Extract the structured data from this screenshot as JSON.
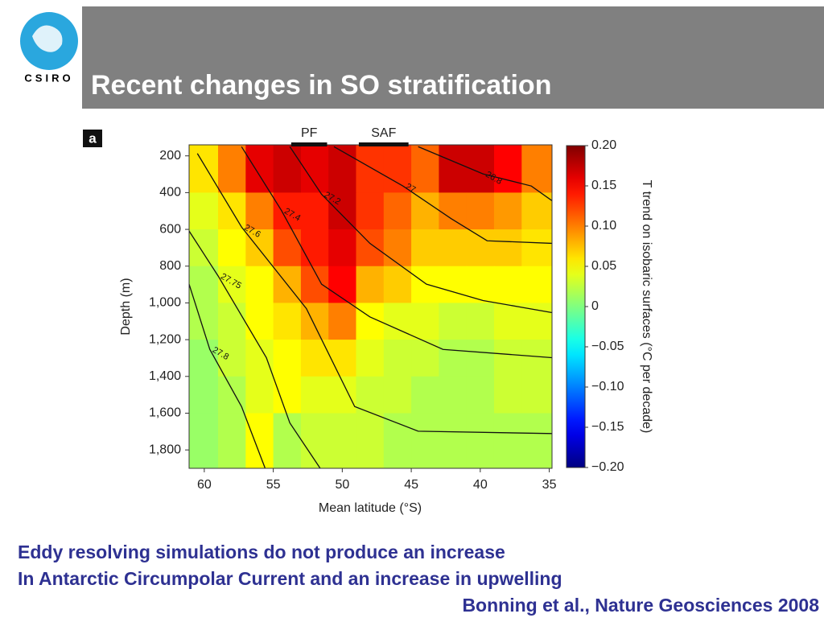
{
  "header": {
    "title": "Recent changes in SO stratification",
    "logo_text": "CSIRO"
  },
  "chart_data": {
    "type": "heatmap",
    "panel_label": "a",
    "xlabel": "Mean latitude (°S)",
    "ylabel": "Depth (m)",
    "colorbar_label": "T trend on isobaric surfaces (°C per decade)",
    "xlim": [
      61.1,
      34.8
    ],
    "xticks": [
      60,
      55,
      50,
      45,
      40,
      35
    ],
    "ylim": [
      140,
      1900
    ],
    "yticks": [
      200,
      400,
      600,
      800,
      {
        "value": 1000,
        "label": "1,000"
      },
      {
        "value": 1200,
        "label": "1,200"
      },
      {
        "value": 1400,
        "label": "1,400"
      },
      {
        "value": 1600,
        "label": "1,600"
      },
      {
        "value": 1800,
        "label": "1,800"
      }
    ],
    "clim": [
      -0.2,
      0.2
    ],
    "cticks": [
      {
        "value": 0.2,
        "label": "0.20"
      },
      0.15,
      {
        "value": 0.1,
        "label": "0.10"
      },
      0.05,
      0,
      {
        "value": -0.05,
        "label": "−0.05"
      },
      {
        "value": -0.1,
        "label": "−0.10"
      },
      {
        "value": -0.15,
        "label": "−0.15"
      },
      {
        "value": -0.2,
        "label": "−0.20"
      }
    ],
    "fronts": [
      {
        "label": "PF",
        "lat": [
          53.7,
          51.1
        ]
      },
      {
        "label": "SAF",
        "lat": [
          48.8,
          45.2
        ]
      }
    ],
    "x_edges": [
      61.1,
      59,
      57,
      55,
      53,
      51,
      49,
      47,
      45,
      43,
      41,
      39,
      37,
      34.8
    ],
    "y_edges": [
      140,
      400,
      600,
      800,
      1000,
      1200,
      1400,
      1600,
      1900
    ],
    "values": [
      [
        0.06,
        0.1,
        0.16,
        0.17,
        0.16,
        0.17,
        0.13,
        0.13,
        0.11,
        0.17,
        0.17,
        0.15,
        0.1
      ],
      [
        0.04,
        0.06,
        0.1,
        0.14,
        0.14,
        0.17,
        0.13,
        0.11,
        0.08,
        0.1,
        0.1,
        0.09,
        0.07
      ],
      [
        0.03,
        0.05,
        0.07,
        0.12,
        0.14,
        0.16,
        0.12,
        0.1,
        0.07,
        0.07,
        0.07,
        0.07,
        0.06
      ],
      [
        0.02,
        0.04,
        0.05,
        0.08,
        0.12,
        0.15,
        0.08,
        0.07,
        0.05,
        0.05,
        0.05,
        0.05,
        0.05
      ],
      [
        0.02,
        0.03,
        0.05,
        0.06,
        0.08,
        0.1,
        0.05,
        0.04,
        0.04,
        0.03,
        0.03,
        0.04,
        0.04
      ],
      [
        0.01,
        0.03,
        0.04,
        0.05,
        0.06,
        0.06,
        0.04,
        0.03,
        0.03,
        0.02,
        0.02,
        0.03,
        0.03
      ],
      [
        0.01,
        0.02,
        0.04,
        0.05,
        0.04,
        0.04,
        0.03,
        0.03,
        0.02,
        0.02,
        0.02,
        0.03,
        0.03
      ],
      [
        0.01,
        0.02,
        0.05,
        0.02,
        0.03,
        0.03,
        0.03,
        0.02,
        0.02,
        0.02,
        0.02,
        0.02,
        0.02
      ]
    ],
    "contours": [
      {
        "label": "26.8",
        "x": [
          44.5,
          39.8,
          36.3,
          34.8
        ],
        "y": [
          150,
          298,
          364,
          444
        ]
      },
      {
        "label": "27",
        "x": [
          50.6,
          45.6,
          42.1,
          39.5,
          34.8
        ],
        "y": [
          150,
          364,
          542,
          662,
          676
        ]
      },
      {
        "label": "27.2",
        "x": [
          53.8,
          51.5,
          48,
          43.9,
          39.8,
          34.8
        ],
        "y": [
          150,
          409,
          676,
          898,
          987,
          1053
        ]
      },
      {
        "label": "27.4",
        "x": [
          57.3,
          54.4,
          51.5,
          48,
          42.7,
          34.8
        ],
        "y": [
          150,
          498,
          898,
          1076,
          1253,
          1298
        ]
      },
      {
        "label": "27.6",
        "x": [
          60.5,
          57.3,
          52.6,
          49.1,
          44.5,
          34.8
        ],
        "y": [
          187,
          587,
          1031,
          1564,
          1698,
          1711
        ]
      },
      {
        "label": "27.75",
        "x": [
          61.1,
          59,
          55.5,
          53.8,
          51.6
        ],
        "y": [
          609,
          853,
          1298,
          1653,
          1900
        ]
      },
      {
        "label": "27.8",
        "x": [
          61.1,
          59.6,
          57.3,
          55.6
        ],
        "y": [
          898,
          1253,
          1564,
          1898
        ]
      }
    ]
  },
  "footer": {
    "lines": [
      "Eddy resolving simulations do not produce an increase",
      "In Antarctic Circumpolar Current and an increase in upwelling"
    ],
    "citation": "Bonning et al., Nature Geosciences 2008"
  }
}
